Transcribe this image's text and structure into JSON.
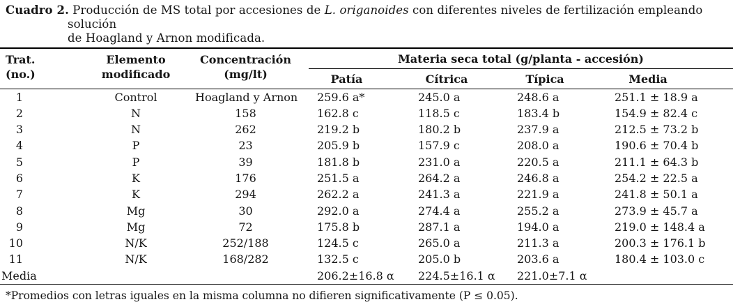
{
  "page": {
    "background": "#ffffff",
    "text_color": "#161616",
    "rule_color": "#000000"
  },
  "caption": {
    "label": "Cuadro 2.",
    "line1_pre_italic": " Producción de MS total por accesiones de ",
    "species_italic": "L. origanoides",
    "line1_post_italic": " con diferentes niveles de fertilización empleando solución",
    "line2": "de Hoagland y Arnon modificada."
  },
  "header": {
    "col_trat_line1": "Trat.",
    "col_trat_line2": "(no.)",
    "col_elemento_line1": "Elemento",
    "col_elemento_line2": "modificado",
    "col_concentracion_line1": "Concentración",
    "col_concentracion_line2": "(mg/lt)",
    "group_header": "Materia seca total (g/planta - accesión)",
    "sub_patia": "Patía",
    "sub_citrica": "Cítrica",
    "sub_tipica": "Típica",
    "sub_media": "Media"
  },
  "column_keys": [
    "trat",
    "elemento",
    "concentracion",
    "patia",
    "citrica",
    "tipica",
    "media"
  ],
  "rows": [
    {
      "trat": "1",
      "elemento": "Control",
      "concentracion": "Hoagland y Arnon",
      "patia": "259.6 a*",
      "citrica": "245.0 a",
      "tipica": "248.6 a",
      "media": "251.1 ± 18.9 a"
    },
    {
      "trat": "2",
      "elemento": "N",
      "concentracion": "158",
      "patia": "162.8 c",
      "citrica": "118.5 c",
      "tipica": "183.4 b",
      "media": "154.9 ± 82.4 c"
    },
    {
      "trat": "3",
      "elemento": "N",
      "concentracion": "262",
      "patia": "219.2 b",
      "citrica": "180.2 b",
      "tipica": "237.9 a",
      "media": "212.5 ± 73.2 b"
    },
    {
      "trat": "4",
      "elemento": "P",
      "concentracion": "23",
      "patia": "205.9 b",
      "citrica": "157.9 c",
      "tipica": "208.0 a",
      "media": "190.6 ± 70.4 b"
    },
    {
      "trat": "5",
      "elemento": "P",
      "concentracion": "39",
      "patia": "181.8 b",
      "citrica": "231.0 a",
      "tipica": "220.5 a",
      "media": "211.1 ± 64.3 b"
    },
    {
      "trat": "6",
      "elemento": "K",
      "concentracion": "176",
      "patia": "251.5 a",
      "citrica": "264.2 a",
      "tipica": "246.8 a",
      "media": "254.2 ± 22.5 a"
    },
    {
      "trat": "7",
      "elemento": "K",
      "concentracion": "294",
      "patia": "262.2 a",
      "citrica": "241.3 a",
      "tipica": "221.9 a",
      "media": "241.8 ± 50.1 a"
    },
    {
      "trat": "8",
      "elemento": "Mg",
      "concentracion": "30",
      "patia": "292.0 a",
      "citrica": "274.4 a",
      "tipica": "255.2 a",
      "media": "273.9 ± 45.7 a"
    },
    {
      "trat": "9",
      "elemento": "Mg",
      "concentracion": "72",
      "patia": "175.8 b",
      "citrica": "287.1 a",
      "tipica": "194.0 a",
      "media": "219.0 ± 148.4 a"
    },
    {
      "trat": "10",
      "elemento": "N/K",
      "concentracion": "252/188",
      "patia": "124.5 c",
      "citrica": "265.0 a",
      "tipica": "211.3 a",
      "media": "200.3 ± 176.1 b"
    },
    {
      "trat": "11",
      "elemento": "N/K",
      "concentracion": "168/282",
      "patia": "132.5 c",
      "citrica": "205.0 b",
      "tipica": "203.6 a",
      "media": "180.4 ± 103.0 c"
    }
  ],
  "summary_row": {
    "label": "Media",
    "patia": "206.2±16.8 α",
    "citrica": "224.5±16.1 α",
    "tipica": "221.0±7.1 α",
    "media": ""
  },
  "footnote": "*Promedios con letras iguales en la misma columna no difieren significativamente (P ≤ 0.05)."
}
